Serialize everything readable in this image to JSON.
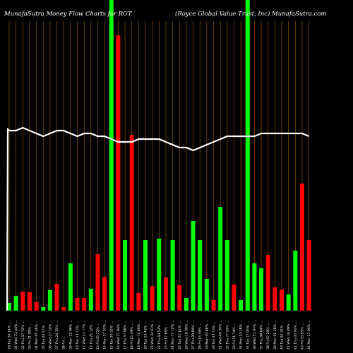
{
  "chart_data": {
    "type": "bar",
    "header_left": "MunafaSutra  Money Flow  Charts for RGT",
    "header_right": "(Royce   Global Value   Trust,  Inc)   MunafaSutra.com",
    "categories": [
      "28 Tue 24 14% ...",
      "01 Wed 31 44% ...",
      "02 Thu 07 72% ...",
      "03 Fri 31 99% ...",
      "04 Mon 05 48% ...",
      "05 Tue 02 27% ...",
      "06 Wed 27 16% ...",
      "07 Thu 24 35% ...",
      "08 Fri ...",
      "09 Mon 12 90% ...",
      "10 Tue 11 72% ...",
      "11 Wed 21 77% ...",
      "12 Thu 21 12% ...",
      "13 Fri 05 72% ...",
      "14 Mon 17 93% ...",
      "15 Tue 29 02% ...",
      "16 Wed 27 84% ...",
      "17 Thu 57 88% ...",
      "18 Fri 25 39% ...",
      "19 Mon 74 69% ...",
      "20 Tue 53 49% ...",
      "21 Wed 34 61% ...",
      "22 Thu 60 52% ...",
      "23 Fri 17 85% ...",
      "24 Mon 77 72% ...",
      "25 Tue 21 14% ...",
      "26 Wed 19 58% ...",
      "27 Thu 20 86% ...",
      "28 Fri 16 49% ...",
      "29 Mon 93 88% ...",
      "30 Tue 45 73% ...",
      "31 Wed 49 30% ...",
      "32 Thu 77 25% ...",
      "33 Fri 71 74% ...",
      "34 Mon 23 18% ...",
      "35 Tue 17 05% ...",
      "36 Wed 51 97% ...",
      "37 Thu 98 64% ...",
      "38 Fri 67 29% ...",
      "39 Mon 01 28% ...",
      "40 Tue 24 91% ...",
      "41 Wed 19 09% ...",
      "42 Thu 05 91% ...",
      "43 Fri 33 95% ...",
      "44 Mon 17 09% ..."
    ],
    "values": [
      11,
      21,
      27,
      26,
      12,
      5,
      29,
      38,
      5,
      67,
      18,
      18,
      31,
      80,
      48,
      100,
      390,
      100,
      249,
      25,
      100,
      35,
      102,
      47,
      100,
      36,
      18,
      127,
      100,
      45,
      15,
      147,
      100,
      37,
      15,
      100,
      67,
      60,
      79,
      33,
      30,
      23,
      85,
      180,
      100
    ],
    "colors": [
      "green",
      "green",
      "red",
      "red",
      "red",
      "green",
      "green",
      "red",
      "red",
      "green",
      "red",
      "red",
      "green",
      "red",
      "red",
      "green",
      "red",
      "green",
      "red",
      "red",
      "green",
      "red",
      "green",
      "red",
      "green",
      "red",
      "green",
      "green",
      "green",
      "green",
      "red",
      "green",
      "green",
      "red",
      "green",
      "green",
      "green",
      "green",
      "red",
      "red",
      "red",
      "green",
      "green",
      "red",
      "red"
    ],
    "clipped": [
      false,
      false,
      false,
      false,
      false,
      false,
      false,
      false,
      false,
      false,
      false,
      false,
      false,
      false,
      false,
      true,
      false,
      false,
      false,
      false,
      false,
      false,
      false,
      false,
      false,
      false,
      false,
      false,
      false,
      false,
      false,
      false,
      false,
      false,
      false,
      true,
      false,
      false,
      false,
      false,
      false,
      false,
      false,
      false,
      false
    ],
    "line": [
      73,
      73,
      74,
      73,
      72,
      71,
      72,
      73,
      73,
      72,
      71,
      72,
      72,
      71,
      71,
      70,
      69,
      69,
      69,
      70,
      70,
      70,
      70,
      69,
      68,
      67,
      67,
      66,
      67,
      68,
      69,
      70,
      71,
      71,
      71,
      71,
      71,
      72,
      72,
      72,
      72,
      72,
      72,
      72,
      71
    ],
    "line_start": 0,
    "bar_color_up": "#00ff00",
    "bar_color_down": "#ff0000",
    "line_color": "#ffffff",
    "grid_color": "#a0640a",
    "grid": true
  }
}
